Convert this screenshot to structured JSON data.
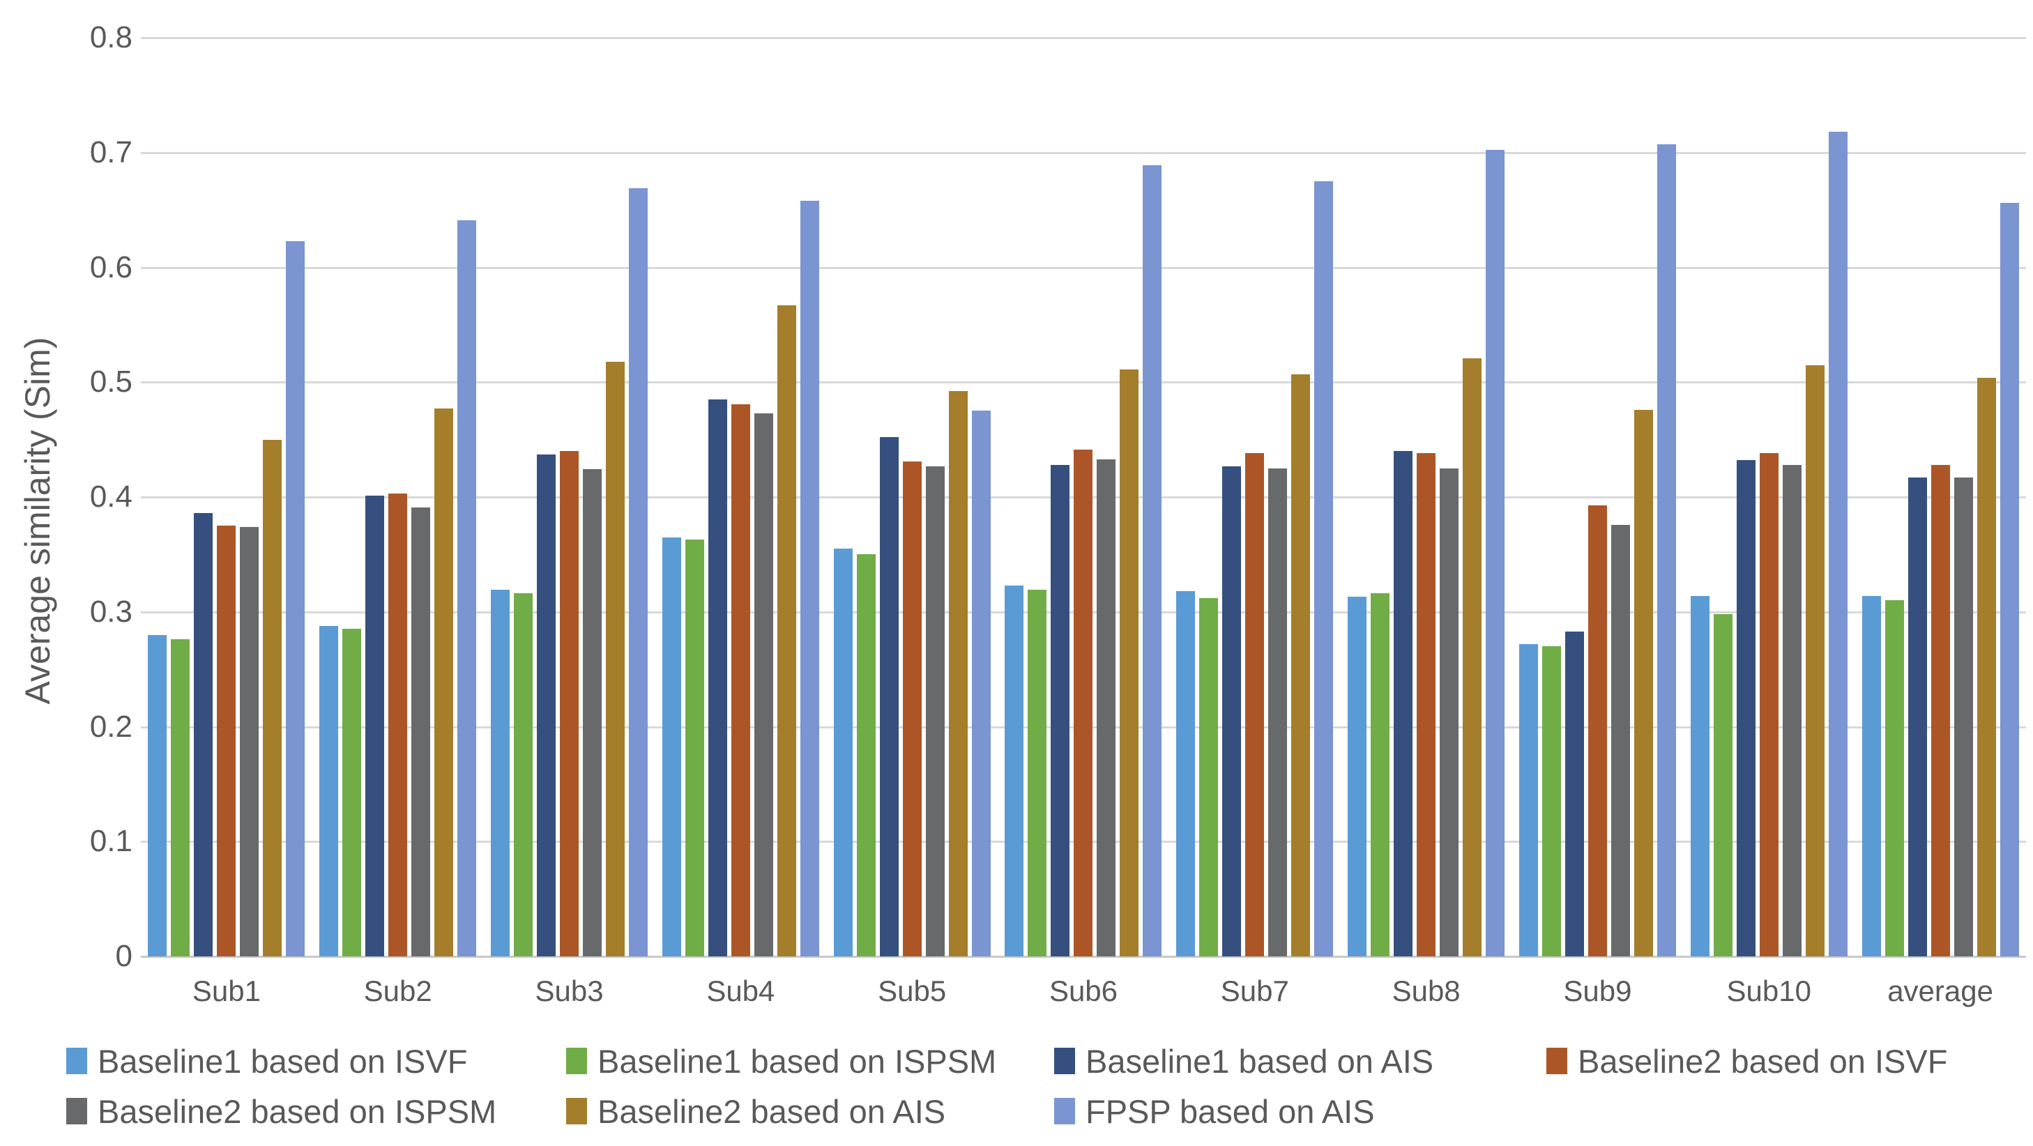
{
  "chart_data": {
    "type": "bar",
    "title": "",
    "xlabel": "",
    "ylabel": "Average similarity (Sim)",
    "ylim": [
      0,
      0.8
    ],
    "ytick_step": 0.1,
    "ytick_labels": [
      "0",
      "0.1",
      "0.2",
      "0.3",
      "0.4",
      "0.5",
      "0.6",
      "0.7",
      "0.8"
    ],
    "grid": "horizontal",
    "legend_position": "bottom",
    "text_color": "#595959",
    "gridline_color": "#D9D9D9",
    "categories": [
      "Sub1",
      "Sub2",
      "Sub3",
      "Sub4",
      "Sub5",
      "Sub6",
      "Sub7",
      "Sub8",
      "Sub9",
      "Sub10",
      "average"
    ],
    "series": [
      {
        "name": "Baseline1 based on ISVF",
        "color": "#5B9BD5",
        "values": [
          0.28,
          0.288,
          0.319,
          0.365,
          0.355,
          0.323,
          0.318,
          0.313,
          0.272,
          0.314,
          0.314
        ]
      },
      {
        "name": "Baseline1 based on ISPSM",
        "color": "#70AD47",
        "values": [
          0.276,
          0.285,
          0.316,
          0.363,
          0.35,
          0.319,
          0.312,
          0.316,
          0.27,
          0.298,
          0.31
        ]
      },
      {
        "name": "Baseline1 based on AIS",
        "color": "#35507E",
        "values": [
          0.386,
          0.401,
          0.437,
          0.485,
          0.452,
          0.428,
          0.427,
          0.44,
          0.283,
          0.432,
          0.417
        ]
      },
      {
        "name": "Baseline2 based on ISVF",
        "color": "#AC5627",
        "values": [
          0.375,
          0.403,
          0.44,
          0.481,
          0.431,
          0.441,
          0.438,
          0.438,
          0.393,
          0.438,
          0.428
        ]
      },
      {
        "name": "Baseline2 based on ISPSM",
        "color": "#67696B",
        "values": [
          0.374,
          0.391,
          0.424,
          0.473,
          0.427,
          0.433,
          0.425,
          0.425,
          0.376,
          0.428,
          0.417
        ]
      },
      {
        "name": "Baseline2 based on AIS",
        "color": "#A57E2B",
        "values": [
          0.45,
          0.477,
          0.518,
          0.567,
          0.492,
          0.511,
          0.507,
          0.521,
          0.476,
          0.515,
          0.504
        ]
      },
      {
        "name": "FPSP based on AIS",
        "color": "#7A95D1",
        "values": [
          0.623,
          0.641,
          0.669,
          0.658,
          0.475,
          0.689,
          0.675,
          0.702,
          0.707,
          0.718,
          0.656
        ]
      }
    ]
  }
}
